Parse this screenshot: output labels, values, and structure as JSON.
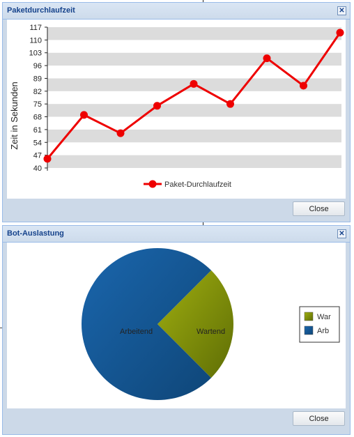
{
  "windows": {
    "line_window": {
      "title": "Paketdurchlaufzeit",
      "close_label": "Close",
      "close_tool": "✕"
    },
    "pie_window": {
      "title": "Bot-Auslastung",
      "close_label": "Close",
      "close_tool": "✕"
    }
  },
  "colors": {
    "line": "#ee0000",
    "band": "#dcdcdc",
    "pie_blue": "#15589a",
    "pie_green": "#8a9a12"
  },
  "chart_data": [
    {
      "type": "line",
      "title": "",
      "ylabel": "Zeit in Sekunden",
      "xlabel": "",
      "ylim": [
        40,
        117
      ],
      "yticks": [
        "117",
        "110",
        "103",
        "96",
        "89",
        "82",
        "75",
        "68",
        "61",
        "54",
        "47",
        "40"
      ],
      "series": [
        {
          "name": "Paket-Durchlaufzeit",
          "values": [
            45,
            69,
            59,
            74,
            86,
            75,
            100,
            85,
            114
          ]
        }
      ],
      "legend": "bottom"
    },
    {
      "type": "pie",
      "title": "",
      "slices": [
        {
          "label": "Wartend",
          "legend": "War",
          "value": 0.25
        },
        {
          "label": "Arbeitend",
          "legend": "Arb",
          "value": 0.75
        }
      ],
      "legend": "right"
    }
  ]
}
